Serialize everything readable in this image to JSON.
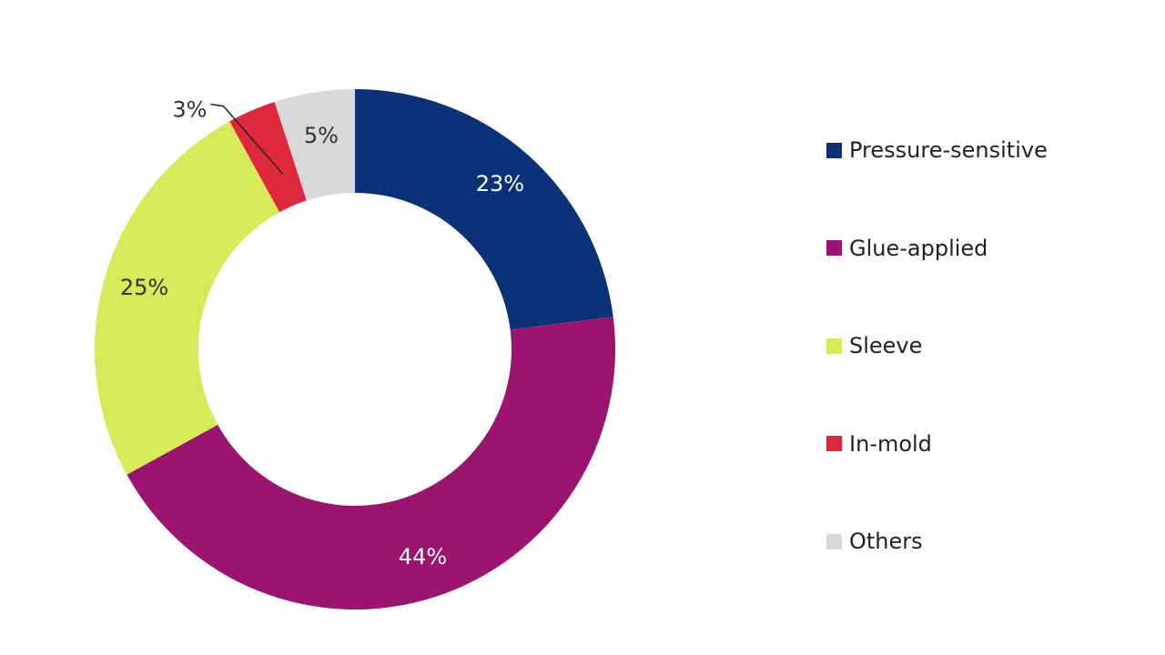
{
  "chart_data": {
    "type": "pie",
    "donut": true,
    "title": "",
    "legend_position": "right",
    "series": [
      {
        "name": "Pressure-sensitive",
        "value": 23,
        "label": "23%",
        "color": "#0b3178",
        "label_color": "#ffffff"
      },
      {
        "name": "Glue-applied",
        "value": 44,
        "label": "44%",
        "color": "#9a1470",
        "label_color": "#ffffff"
      },
      {
        "name": "Sleeve",
        "value": 25,
        "label": "25%",
        "color": "#d7ea5a",
        "label_color": "#333333"
      },
      {
        "name": "In-mold",
        "value": 3,
        "label": "3%",
        "color": "#e0283c",
        "label_color": "#333333"
      },
      {
        "name": "Others",
        "value": 5,
        "label": "5%",
        "color": "#d9d9d9",
        "label_color": "#333333"
      }
    ]
  }
}
